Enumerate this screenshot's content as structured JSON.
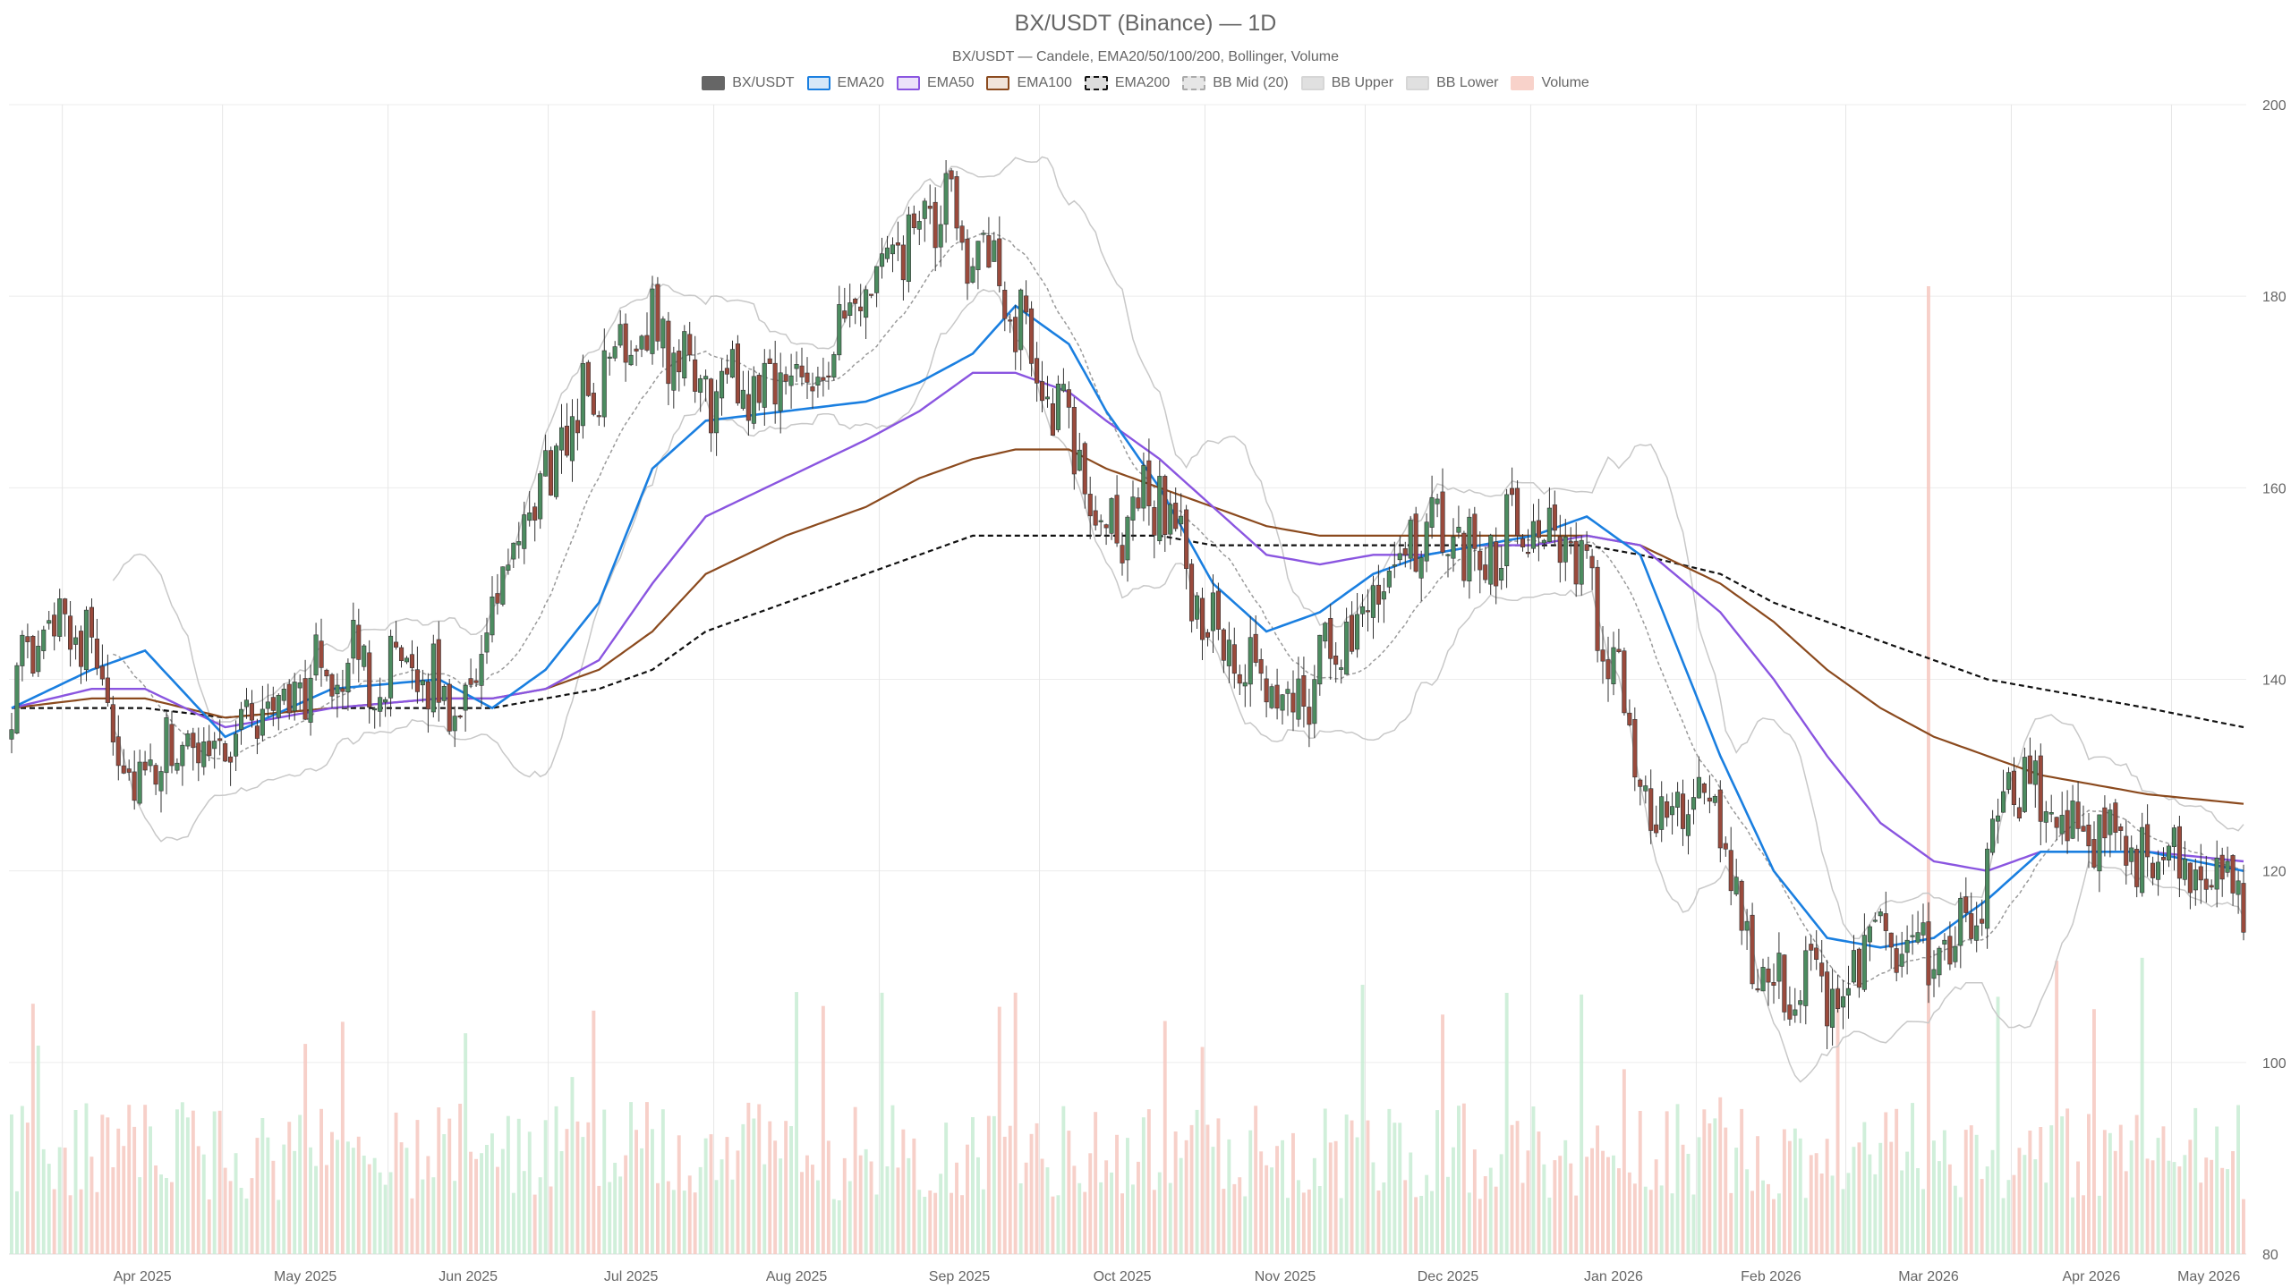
{
  "chart_data": {
    "type": "candlestick",
    "title": "BX/USDT (Binance) — 1D",
    "subtitle": "BX/USDT — Candele, EMA20/50/100/200, Bollinger, Volume",
    "ylim": [
      80,
      200
    ],
    "y_ticks": [
      "80",
      "100",
      "120",
      "140",
      "160",
      "180",
      "200"
    ],
    "x_ticks": [
      "Apr 2025",
      "May 2025",
      "Jun 2025",
      "Jul 2025",
      "Aug 2025",
      "Sep 2025",
      "Oct 2025",
      "Nov 2025",
      "Dec 2025",
      "Jan 2026",
      "Feb 2026",
      "Mar 2026",
      "Apr 2026",
      "May 2026"
    ],
    "grid": true,
    "legend_position": "top-center",
    "colors": {
      "up": "#4c8c60",
      "down": "#9a4a3c",
      "ema20": "#1a7fe0",
      "ema50": "#8a55e0",
      "ema100": "#8b4a1e",
      "ema200": "#111111",
      "bb_mid": "#9a9a9a",
      "bb_band": "#c8c8c8",
      "vol_up": "#c8ecd4",
      "vol_down": "#f6c8c0"
    },
    "legend": [
      {
        "label": "BX/USDT",
        "fill": "#666666",
        "border": "#666666",
        "dash": false
      },
      {
        "label": "EMA20",
        "fill": "#d6e8f8",
        "border": "#1a7fe0",
        "dash": false
      },
      {
        "label": "EMA50",
        "fill": "#ece2fa",
        "border": "#8a55e0",
        "dash": false
      },
      {
        "label": "EMA100",
        "fill": "#f1e4da",
        "border": "#8b4a1e",
        "dash": false
      },
      {
        "label": "EMA200",
        "fill": "#dddddd",
        "border": "#111111",
        "dash": true
      },
      {
        "label": "BB Mid (20)",
        "fill": "#e6e6e6",
        "border": "#aaaaaa",
        "dash": true
      },
      {
        "label": "BB Upper",
        "fill": "#e0e0e0",
        "border": "#d6d6d6",
        "dash": false
      },
      {
        "label": "BB Lower",
        "fill": "#e0e0e0",
        "border": "#d6d6d6",
        "dash": false
      },
      {
        "label": "Volume",
        "fill": "#f8d2ca",
        "border": "#f8d2ca",
        "dash": false
      }
    ],
    "price_anchors": {
      "x_day": [
        0,
        10,
        18,
        22,
        30,
        40,
        50,
        62,
        78,
        85,
        92,
        105,
        118,
        130,
        148,
        155,
        162,
        175,
        188,
        198,
        205,
        215,
        222,
        230,
        240,
        248,
        258,
        268,
        275,
        285,
        295,
        308,
        318,
        325,
        340,
        348,
        360,
        368,
        375,
        385,
        395,
        405,
        418
      ],
      "close": [
        138,
        148,
        140,
        128,
        132,
        134,
        138,
        142,
        139,
        138,
        150,
        167,
        178,
        170,
        172,
        175,
        182,
        189,
        178,
        165,
        155,
        160,
        148,
        140,
        138,
        143,
        153,
        155,
        153,
        158,
        150,
        125,
        128,
        112,
        106,
        113,
        110,
        115,
        130,
        125,
        122,
        121,
        118
      ]
    },
    "ema_anchors": {
      "x_day": [
        0,
        15,
        25,
        40,
        60,
        80,
        90,
        100,
        110,
        120,
        130,
        145,
        160,
        170,
        180,
        188,
        198,
        205,
        215,
        225,
        235,
        245,
        255,
        265,
        275,
        285,
        295,
        305,
        320,
        330,
        340,
        350,
        360,
        370,
        380,
        390,
        400,
        418
      ],
      "ema20": [
        137,
        141,
        143,
        134,
        139,
        140,
        137,
        141,
        148,
        162,
        167,
        168,
        169,
        171,
        174,
        179,
        175,
        168,
        160,
        150,
        145,
        147,
        151,
        153,
        154,
        155,
        157,
        153,
        132,
        120,
        113,
        112,
        113,
        117,
        122,
        122,
        122,
        120
      ],
      "ema50": [
        137,
        139,
        139,
        135,
        137,
        138,
        138,
        139,
        142,
        150,
        157,
        161,
        165,
        168,
        172,
        172,
        170,
        167,
        163,
        158,
        153,
        152,
        153,
        153,
        154,
        154,
        155,
        154,
        147,
        140,
        132,
        125,
        121,
        120,
        122,
        122,
        122,
        121
      ],
      "ema100": [
        137,
        138,
        138,
        136,
        137,
        138,
        138,
        139,
        141,
        145,
        151,
        155,
        158,
        161,
        163,
        164,
        164,
        162,
        160,
        158,
        156,
        155,
        155,
        155,
        155,
        155,
        155,
        154,
        150,
        146,
        141,
        137,
        134,
        132,
        130,
        129,
        128,
        127
      ],
      "ema200": [
        137,
        137,
        137,
        136,
        137,
        137,
        137,
        138,
        139,
        141,
        145,
        148,
        151,
        153,
        155,
        155,
        155,
        155,
        155,
        154,
        154,
        154,
        154,
        154,
        154,
        154,
        154,
        153,
        151,
        148,
        146,
        144,
        142,
        140,
        139,
        138,
        137,
        135
      ]
    }
  }
}
